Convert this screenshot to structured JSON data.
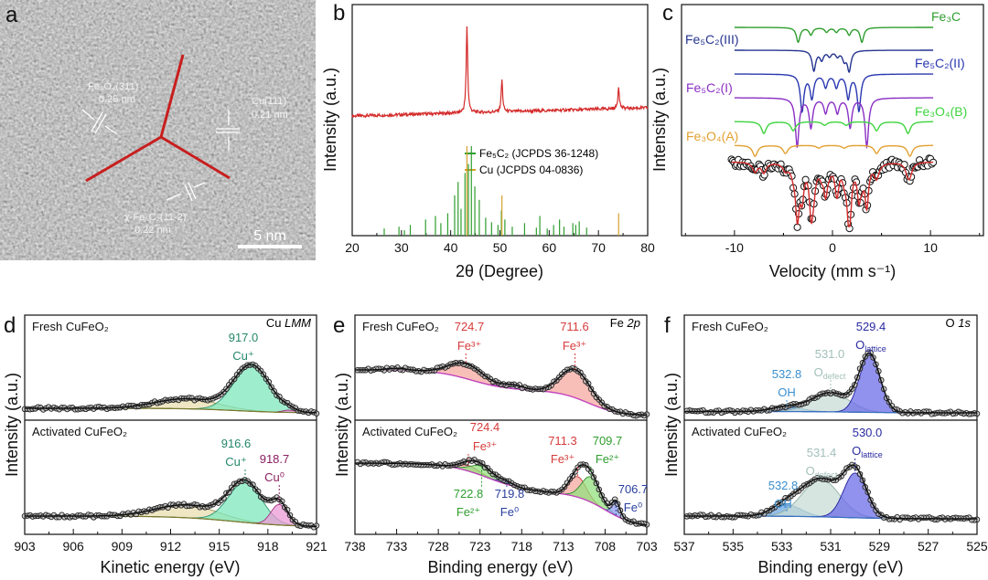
{
  "panel_letters": {
    "a": "a",
    "b": "b",
    "c": "c",
    "d": "d",
    "e": "e",
    "f": "f"
  },
  "panel_a": {
    "fe3o4_plane": "Fe₃O₄(311)",
    "fe3o4_spacing": "0.25 nm",
    "cu_plane": "Cu(111)",
    "cu_spacing": "0.21 nm",
    "fe5c2_plane": "χ-Fe₅C₂(11-2)",
    "fe5c2_spacing": "0.22 nm",
    "scale_bar": "5 nm"
  },
  "chart_data": [
    {
      "type": "line",
      "panel": "b",
      "xlabel": "2θ (Degree)",
      "ylabel": "Intensity (a.u.)",
      "xlim": [
        20,
        80
      ],
      "xticks": [
        20,
        30,
        40,
        50,
        60,
        70,
        80
      ],
      "measured_peaks": [
        {
          "two_theta": 43.3,
          "intensity": 9.5
        },
        {
          "two_theta": 50.4,
          "intensity": 3.5
        },
        {
          "two_theta": 74.1,
          "intensity": 2.4
        }
      ],
      "line_color": "#d42a2a",
      "legend_position": "center-right",
      "references": [
        {
          "name": "Fe₅C₂ (JCPDS 36-1248)",
          "color": "#2e9e2e",
          "positions": [
            26.5,
            29.5,
            30.6,
            31.8,
            34.9,
            36.9,
            38.0,
            39.4,
            40.8,
            41.5,
            42.1,
            42.9,
            43.6,
            44.2,
            44.9,
            45.8,
            47.1,
            48.3,
            49.6,
            50.3,
            51.0,
            52.5,
            55.0,
            57.4,
            58.1,
            59.6,
            60.9,
            62.1,
            63.0,
            64.8,
            65.4,
            66.1,
            67.6
          ],
          "intensities": [
            8,
            10,
            6,
            12,
            18,
            22,
            14,
            25,
            45,
            60,
            30,
            70,
            80,
            100,
            55,
            40,
            20,
            15,
            12,
            28,
            18,
            10,
            14,
            9,
            22,
            8,
            12,
            18,
            10,
            14,
            12,
            16,
            9
          ]
        },
        {
          "name": "Cu (JCPDS 04-0836)",
          "color": "#d4a02a",
          "positions": [
            43.3,
            50.4,
            74.1
          ],
          "intensities": [
            100,
            45,
            25
          ]
        }
      ]
    },
    {
      "type": "line",
      "panel": "c",
      "xlabel": "Velocity (mm s⁻¹)",
      "ylabel": "Intensity (a.u.)",
      "xlim": [
        -15.4,
        15.4
      ],
      "xticks": [
        -10,
        0,
        10
      ],
      "components": [
        {
          "name": "Fe₃C",
          "color": "#2e9e2e",
          "lines": [
            [
              -3.5,
              1.6
            ],
            [
              -2.2,
              0.8
            ],
            [
              -0.6,
              0.5
            ],
            [
              0.4,
              0.5
            ],
            [
              1.7,
              0.8
            ],
            [
              3.0,
              1.6
            ]
          ]
        },
        {
          "name": "Fe₅C₂(III)",
          "color": "#25348f",
          "lines": [
            [
              -1.9,
              2.2
            ],
            [
              -1.1,
              1.0
            ],
            [
              -0.3,
              0.6
            ],
            [
              0.5,
              0.6
            ],
            [
              1.2,
              1.0
            ],
            [
              1.7,
              2.2
            ]
          ]
        },
        {
          "name": "Fe₅C₂(II)",
          "color": "#2a38b0",
          "lines": [
            [
              -3.1,
              4.0
            ],
            [
              -2.1,
              2.6
            ],
            [
              -0.7,
              1.4
            ],
            [
              0.4,
              1.4
            ],
            [
              1.6,
              2.6
            ],
            [
              2.7,
              4.0
            ]
          ]
        },
        {
          "name": "Fe₅C₂(I)",
          "color": "#8a2fc4",
          "lines": [
            [
              -3.6,
              5.3
            ],
            [
              -2.2,
              3.2
            ],
            [
              -0.7,
              1.6
            ],
            [
              0.5,
              1.6
            ],
            [
              1.8,
              3.2
            ],
            [
              3.5,
              5.3
            ]
          ]
        },
        {
          "name": "Fe₃O₄(B)",
          "color": "#3ed43e",
          "lines": [
            [
              -7.0,
              1.3
            ],
            [
              -4.0,
              1.0
            ],
            [
              -0.8,
              0.4
            ],
            [
              1.4,
              0.4
            ],
            [
              4.5,
              1.0
            ],
            [
              7.7,
              1.3
            ]
          ]
        },
        {
          "name": "Fe₃O₄(A)",
          "color": "#e2a030",
          "lines": [
            [
              -7.9,
              1.2
            ],
            [
              -4.8,
              0.9
            ],
            [
              -1.4,
              0.3
            ],
            [
              1.2,
              0.3
            ],
            [
              4.5,
              0.9
            ],
            [
              7.9,
              1.2
            ]
          ]
        }
      ],
      "fit_color": "#d42a2a"
    },
    {
      "type": "line",
      "panel": "d",
      "xlabel": "Kinetic energy (eV)",
      "ylabel": "Intensity (a.u.)",
      "xlim": [
        903,
        921
      ],
      "xticks": [
        903,
        906,
        909,
        912,
        915,
        918,
        921
      ],
      "core_level": {
        "element": "Cu ",
        "orbital": "LMM"
      },
      "spectra": [
        {
          "label": "Fresh CuFeO₂",
          "background_color": "#7a7a30",
          "background": {
            "base": 0,
            "steps": [
              [
                916,
                0.1,
                -1.5
              ]
            ]
          },
          "peaks": [
            {
              "center": 913.0,
              "height": 0.22,
              "fwhm": 4.5,
              "color": "#e9deb0",
              "stroke": "#9a9050"
            },
            {
              "center": 917.0,
              "height": 1.0,
              "fwhm": 2.6,
              "color": "#7ee8bd",
              "stroke": "#2e8f6a",
              "value": "917.0",
              "species": "Cu⁺",
              "label_color": "#23876a"
            },
            {
              "center": 919.3,
              "height": 0.05,
              "fwhm": 0.9,
              "color": "#ec9ad6",
              "stroke": "#a03080"
            }
          ]
        },
        {
          "label": "Activated CuFeO₂",
          "background_color": "#7a7a30",
          "background": {
            "base": 0,
            "steps": [
              [
                916,
                0.24,
                -1.8
              ]
            ]
          },
          "peaks": [
            {
              "center": 913.0,
              "height": 0.28,
              "fwhm": 4.5,
              "color": "#e9deb0",
              "stroke": "#9a9050"
            },
            {
              "center": 916.6,
              "height": 0.88,
              "fwhm": 2.4,
              "color": "#7ee8bd",
              "stroke": "#2e8f6a",
              "value": "916.6",
              "species": "Cu⁺",
              "label_color": "#23876a"
            },
            {
              "center": 918.7,
              "height": 0.45,
              "fwhm": 1.2,
              "color": "#ec9ad6",
              "stroke": "#a03080",
              "value": "918.7",
              "species": "Cu⁰",
              "label_color": "#8a2060"
            }
          ]
        }
      ]
    },
    {
      "type": "line",
      "panel": "e",
      "xlabel": "Binding energy (eV)",
      "ylabel": "Intensity (a.u.)",
      "xlim": [
        738,
        703
      ],
      "xticks": [
        738,
        733,
        728,
        723,
        718,
        713,
        708,
        703
      ],
      "core_level": {
        "element": "Fe ",
        "orbital": "2p"
      },
      "spectra": [
        {
          "label": "Fresh CuFeO₂",
          "background_color": "#c23fc0",
          "background": {
            "base": 0,
            "steps": [
              [
                710,
                0.55,
                1.8
              ],
              [
                724,
                0.45,
                2.2
              ]
            ]
          },
          "peaks": [
            {
              "center": 733.0,
              "height": 0.04,
              "fwhm": 3,
              "color": "#c9a0ee",
              "stroke": "#7a3fa0"
            },
            {
              "center": 724.7,
              "height": 0.33,
              "fwhm": 4.8,
              "color": "#f5a8a0",
              "stroke": "#c03030",
              "value": "724.7",
              "species": "Fe³⁺",
              "label_color": "#d63b3b"
            },
            {
              "center": 719.0,
              "height": 0.08,
              "fwhm": 3,
              "color": "#c9a0ee",
              "stroke": "#7a3fa0"
            },
            {
              "center": 711.6,
              "height": 0.62,
              "fwhm": 4.2,
              "color": "#f5a8a0",
              "stroke": "#c03030",
              "value": "711.6",
              "species": "Fe³⁺",
              "label_color": "#d63b3b"
            }
          ]
        },
        {
          "label": "Activated CuFeO₂",
          "background_color": "#c23fc0",
          "background": {
            "base": 0,
            "steps": [
              [
                708,
                0.75,
                1.8
              ],
              [
                722,
                0.65,
                2.4
              ]
            ]
          },
          "peaks": [
            {
              "center": 724.4,
              "height": 0.12,
              "fwhm": 3,
              "color": "#f5a8a0",
              "stroke": "#c03030",
              "value": "724.4",
              "species": "Fe³⁺",
              "label_color": "#d63b3b"
            },
            {
              "center": 722.8,
              "height": 0.2,
              "fwhm": 3.2,
              "color": "#92e07e",
              "stroke": "#2f8a2f",
              "value": "722.8",
              "species": "Fe²⁺",
              "label_color": "#2f9d2f",
              "below": true
            },
            {
              "center": 719.8,
              "height": 0.06,
              "fwhm": 2,
              "color": "#8fa0f0",
              "stroke": "#2a3f9f",
              "value": "719.8",
              "species": "Fe⁰",
              "label_color": "#2a3f9f",
              "below": true
            },
            {
              "center": 711.3,
              "height": 0.45,
              "fwhm": 2.4,
              "color": "#f5a8a0",
              "stroke": "#c03030",
              "value": "711.3",
              "species": "Fe³⁺",
              "label_color": "#d63b3b"
            },
            {
              "center": 709.7,
              "height": 0.55,
              "fwhm": 2.6,
              "color": "#92e07e",
              "stroke": "#2f8a2f",
              "value": "709.7",
              "species": "Fe²⁺",
              "label_color": "#2f9d2f"
            },
            {
              "center": 706.7,
              "height": 0.32,
              "fwhm": 1.1,
              "color": "#8fa0f0",
              "stroke": "#2a3f9f",
              "value": "706.7",
              "species": "Fe⁰",
              "label_color": "#2a3f9f"
            }
          ]
        }
      ]
    },
    {
      "type": "line",
      "panel": "f",
      "xlabel": "Binding energy (eV)",
      "ylabel": "Intensity (a.u.)",
      "xlim": [
        537,
        525
      ],
      "xticks": [
        537,
        535,
        533,
        531,
        529,
        527,
        525
      ],
      "core_level": {
        "element": "O ",
        "orbital": "1s"
      },
      "spectra": [
        {
          "label": "Fresh CuFeO₂",
          "background_color": "#3a6fc0",
          "background": {
            "base": 0,
            "steps": [
              [
                530,
                0.03,
                1
              ]
            ]
          },
          "peaks": [
            {
              "center": 532.8,
              "height": 0.1,
              "fwhm": 1.5,
              "color": "#6fa8e0",
              "stroke": "#2a70b8",
              "value": "532.8",
              "species": "OH",
              "label_color": "#3a8fd0"
            },
            {
              "center": 531.0,
              "height": 0.42,
              "fwhm": 1.8,
              "color": "#c8dcd6",
              "stroke": "#90b0a8",
              "value": "531.0",
              "species": "O",
              "sub": "defect",
              "label_color": "#a2c0ba"
            },
            {
              "center": 529.4,
              "height": 1.25,
              "fwhm": 1.0,
              "color": "#6c6ce8",
              "stroke": "#20209a",
              "value": "529.4",
              "species": "O",
              "sub": "lattice",
              "label_color": "#2a2aa0"
            }
          ]
        },
        {
          "label": "Activated CuFeO₂",
          "background_color": "#3a6fc0",
          "background": {
            "base": 0,
            "steps": [
              [
                530.5,
                0.06,
                1
              ]
            ]
          },
          "peaks": [
            {
              "center": 532.8,
              "height": 0.25,
              "fwhm": 1.4,
              "color": "#6fa8e0",
              "stroke": "#2a70b8",
              "value": "532.8",
              "species": "OH",
              "label_color": "#3a8fd0"
            },
            {
              "center": 531.4,
              "height": 0.82,
              "fwhm": 1.8,
              "color": "#c8dcd6",
              "stroke": "#90b0a8",
              "value": "531.4",
              "species": "O",
              "sub": "defect",
              "label_color": "#a2c0ba"
            },
            {
              "center": 530.0,
              "height": 0.98,
              "fwhm": 1.1,
              "color": "#6c6ce8",
              "stroke": "#20209a",
              "value": "530.0",
              "species": "O",
              "sub": "lattice",
              "label_color": "#2a2aa0"
            }
          ]
        }
      ]
    }
  ]
}
